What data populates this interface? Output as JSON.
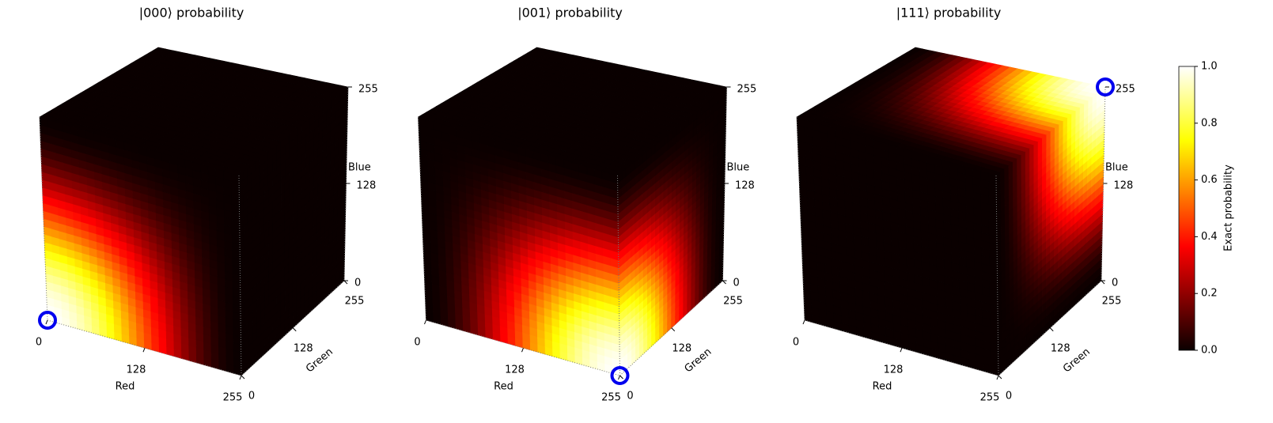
{
  "chart_data": [
    {
      "type": "scatter3d",
      "title": "|000⟩ probability",
      "xlabel": "Red",
      "ylabel": "Green",
      "zlabel": "Blue",
      "xlim": [
        0,
        255
      ],
      "ylim": [
        0,
        255
      ],
      "zlim": [
        0,
        255
      ],
      "xticks": [
        0,
        128,
        255
      ],
      "yticks": [
        0,
        128,
        255
      ],
      "zticks": [
        0,
        128,
        255
      ],
      "marker": [
        0,
        0,
        0
      ],
      "marker_color": "#0000ee"
    },
    {
      "type": "scatter3d",
      "title": "|001⟩ probability",
      "xlabel": "Red",
      "ylabel": "Green",
      "zlabel": "Blue",
      "xlim": [
        0,
        255
      ],
      "ylim": [
        0,
        255
      ],
      "zlim": [
        0,
        255
      ],
      "xticks": [
        0,
        128,
        255
      ],
      "yticks": [
        0,
        128,
        255
      ],
      "zticks": [
        0,
        128,
        255
      ],
      "marker": [
        255,
        0,
        0
      ],
      "marker_color": "#0000ee"
    },
    {
      "type": "scatter3d",
      "title": "|111⟩ probability",
      "xlabel": "Red",
      "ylabel": "Green",
      "zlabel": "Blue",
      "xlim": [
        0,
        255
      ],
      "ylim": [
        0,
        255
      ],
      "zlim": [
        0,
        255
      ],
      "xticks": [
        0,
        128,
        255
      ],
      "yticks": [
        0,
        128,
        255
      ],
      "zticks": [
        0,
        128,
        255
      ],
      "marker": [
        255,
        255,
        255
      ],
      "marker_color": "#0000ee"
    }
  ],
  "colorbar": {
    "label": "Exact probability",
    "cmap": "hot",
    "lim": [
      0,
      1
    ],
    "ticks": [
      {
        "value": 0,
        "label": "0.0"
      },
      {
        "value": 0.2,
        "label": "0.2"
      },
      {
        "value": 0.4,
        "label": "0.4"
      },
      {
        "value": 0.6,
        "label": "0.6"
      },
      {
        "value": 0.8,
        "label": "0.8"
      },
      {
        "value": 1,
        "label": "1.0"
      }
    ]
  }
}
